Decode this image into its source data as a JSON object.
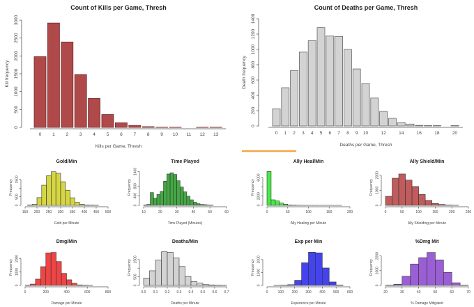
{
  "chart_data": [
    {
      "id": "kills",
      "type": "bar",
      "title": "Count of Kills per Game, Thresh",
      "xlabel": "Kills per Game, Thresh",
      "ylabel": "Kill frequency",
      "categories": [
        "0",
        "1",
        "2",
        "3",
        "4",
        "5",
        "6",
        "7",
        "8",
        "9",
        "10",
        "11",
        "12",
        "13"
      ],
      "values": [
        1980,
        2920,
        2390,
        1480,
        810,
        360,
        130,
        55,
        20,
        8,
        8,
        0,
        8,
        8
      ],
      "xtick_labels": [
        "0",
        "1",
        "2",
        "3",
        "4",
        "5",
        "6",
        "7",
        "8",
        "9",
        "10",
        "11",
        "12",
        "13"
      ],
      "yticks": [
        0,
        500,
        1000,
        1500,
        2000,
        2500,
        3000
      ],
      "ylim": [
        0,
        3000
      ],
      "color": "#b04a4a",
      "border": "#6e2a2a"
    },
    {
      "id": "deaths",
      "type": "bar",
      "title": "Count of Deaths per Game, Thresh",
      "xlabel": "Deaths per Game, Thresh",
      "ylabel": "Death frequency",
      "categories": [
        "0",
        "1",
        "2",
        "3",
        "4",
        "5",
        "6",
        "7",
        "8",
        "9",
        "10",
        "11",
        "12",
        "13",
        "14",
        "15",
        "16",
        "17",
        "18",
        "19",
        "20"
      ],
      "values": [
        225,
        500,
        725,
        965,
        1115,
        1285,
        1175,
        1170,
        1000,
        745,
        555,
        365,
        190,
        100,
        45,
        25,
        8,
        5,
        5,
        0,
        5
      ],
      "xtick_labels": [
        "0",
        "1",
        "2",
        "3",
        "4",
        "5",
        "6",
        "7",
        "8",
        "9",
        "10",
        "12",
        "14",
        "16",
        "18",
        "20"
      ],
      "yticks": [
        0,
        200,
        400,
        600,
        800,
        1000,
        1200,
        1400
      ],
      "ylim": [
        0,
        1400
      ],
      "color": "#d3d3d3",
      "border": "#666666"
    },
    {
      "id": "gold",
      "type": "bar",
      "title": "Gold/Min",
      "xlabel": "Gold per Minute",
      "ylabel": "Frequency",
      "bin_start": 160,
      "bin_width": 20,
      "values": [
        20,
        60,
        450,
        1170,
        1720,
        1950,
        1860,
        1370,
        880,
        440,
        180,
        70,
        20,
        15,
        10
      ],
      "xticks": [
        150,
        200,
        250,
        300,
        350,
        400,
        450,
        500
      ],
      "yticks": [
        0,
        500,
        1000,
        1500
      ],
      "ytick_labels": [
        "0",
        "500",
        "",
        "1500"
      ],
      "ylim": [
        0,
        2100
      ],
      "color": "#d6d644"
    },
    {
      "id": "time",
      "type": "bar",
      "title": "Time Played",
      "xlabel": "Time Played (Minutes)",
      "ylabel": "Frequency",
      "bin_start": 10,
      "bin_width": 2,
      "values": [
        20,
        40,
        530,
        300,
        450,
        580,
        1000,
        1300,
        1350,
        1280,
        1020,
        760,
        560,
        380,
        230,
        130,
        70,
        40,
        30,
        15,
        10
      ],
      "xticks": [
        10,
        20,
        30,
        40,
        50,
        60
      ],
      "yticks": [
        0,
        400,
        800,
        1400
      ],
      "ytick_labels": [
        "0",
        "400",
        "800",
        "1400"
      ],
      "ylim": [
        0,
        1500
      ],
      "color": "#44a844"
    },
    {
      "id": "heal",
      "type": "bar",
      "title": "Ally Heal/Min",
      "xlabel": "Ally Healing per Minute",
      "ylabel": "Frequency",
      "bin_start": 0,
      "bin_width": 10,
      "values": [
        7300,
        1200,
        950,
        500,
        250,
        80,
        50,
        30,
        20,
        10,
        10,
        5,
        5,
        5,
        5,
        5,
        5,
        5
      ],
      "xticks": [
        0,
        50,
        100,
        150,
        200
      ],
      "yticks": [
        0,
        2000,
        4000,
        6000
      ],
      "ytick_labels": [
        "0",
        "2000",
        "",
        "6000"
      ],
      "ylim": [
        0,
        7800
      ],
      "color": "#44ee44"
    },
    {
      "id": "shield",
      "type": "bar",
      "title": "Ally Shield/Min",
      "xlabel": "Ally Shielding per Minute",
      "ylabel": "Frequency",
      "bin_start": 0,
      "bin_width": 20,
      "values": [
        600,
        1800,
        2080,
        1680,
        1250,
        730,
        330,
        130,
        60,
        20,
        10
      ],
      "xticks": [
        0,
        50,
        100,
        150,
        200,
        250
      ],
      "yticks": [
        0,
        1000,
        2000
      ],
      "ytick_labels": [
        "0",
        "1000",
        "2000"
      ],
      "ylim": [
        0,
        2400
      ],
      "color": "#c05c5c"
    },
    {
      "id": "dmg",
      "type": "bar",
      "title": "Dmg/Min",
      "xlabel": "Damage per Minute",
      "ylabel": "Frequency",
      "bin_start": 0,
      "bin_width": 50,
      "values": [
        20,
        100,
        470,
        1400,
        2430,
        2460,
        1780,
        900,
        420,
        160,
        40,
        20,
        10
      ],
      "xticks": [
        0,
        200,
        400,
        600,
        800
      ],
      "yticks": [
        0,
        1000,
        2000
      ],
      "ytick_labels": [
        "0",
        "1000",
        "2000"
      ],
      "ylim": [
        0,
        2700
      ],
      "color": "#f04444"
    },
    {
      "id": "dpm",
      "type": "bar",
      "title": "Deaths/Min",
      "xlabel": "Deaths per Minute",
      "ylabel": "Frequency",
      "bin_start": 0,
      "bin_width": 0.05,
      "values": [
        430,
        850,
        1480,
        1950,
        1920,
        1600,
        1100,
        520,
        220,
        130,
        50,
        30,
        15,
        10
      ],
      "xticks": [
        0,
        0.1,
        0.2,
        0.3,
        0.4,
        0.5,
        0.6,
        0.7
      ],
      "xtick_labels": [
        "0.0",
        "0.1",
        "0.2",
        "0.3",
        "0.4",
        "0.5",
        "0.6",
        "0.7"
      ],
      "yticks": [
        0,
        500,
        1000,
        1500
      ],
      "ytick_labels": [
        "0",
        "500",
        "",
        "1500"
      ],
      "ylim": [
        0,
        2100
      ],
      "color": "#d3d3d3"
    },
    {
      "id": "exp",
      "type": "bar",
      "title": "Exp per Min",
      "xlabel": "Experience per Minute",
      "ylabel": "Frequency",
      "bin_start": 50,
      "bin_width": 50,
      "values": [
        10,
        20,
        60,
        400,
        1750,
        2570,
        2520,
        1350,
        270,
        30
      ],
      "xticks": [
        0,
        100,
        200,
        300,
        400,
        500,
        600
      ],
      "yticks": [
        0,
        1000,
        2000
      ],
      "ytick_labels": [
        "0",
        "1000",
        "2000"
      ],
      "ylim": [
        0,
        2800
      ],
      "color": "#4444ee"
    },
    {
      "id": "mit",
      "type": "bar",
      "title": "%Dmg Mit",
      "xlabel": "% Damage Mitigated",
      "ylabel": "Frequency",
      "bin_start": 20,
      "bin_width": 5,
      "values": [
        20,
        80,
        620,
        1450,
        1880,
        2230,
        1730,
        880,
        180,
        20
      ],
      "xticks": [
        20,
        30,
        40,
        50,
        60,
        70
      ],
      "yticks": [
        0,
        1000,
        2000
      ],
      "ytick_labels": [
        "0",
        "1000",
        "2000"
      ],
      "ylim": [
        0,
        2450
      ],
      "color": "#9a5fd4"
    }
  ],
  "accent_line_color": "#f5a742"
}
